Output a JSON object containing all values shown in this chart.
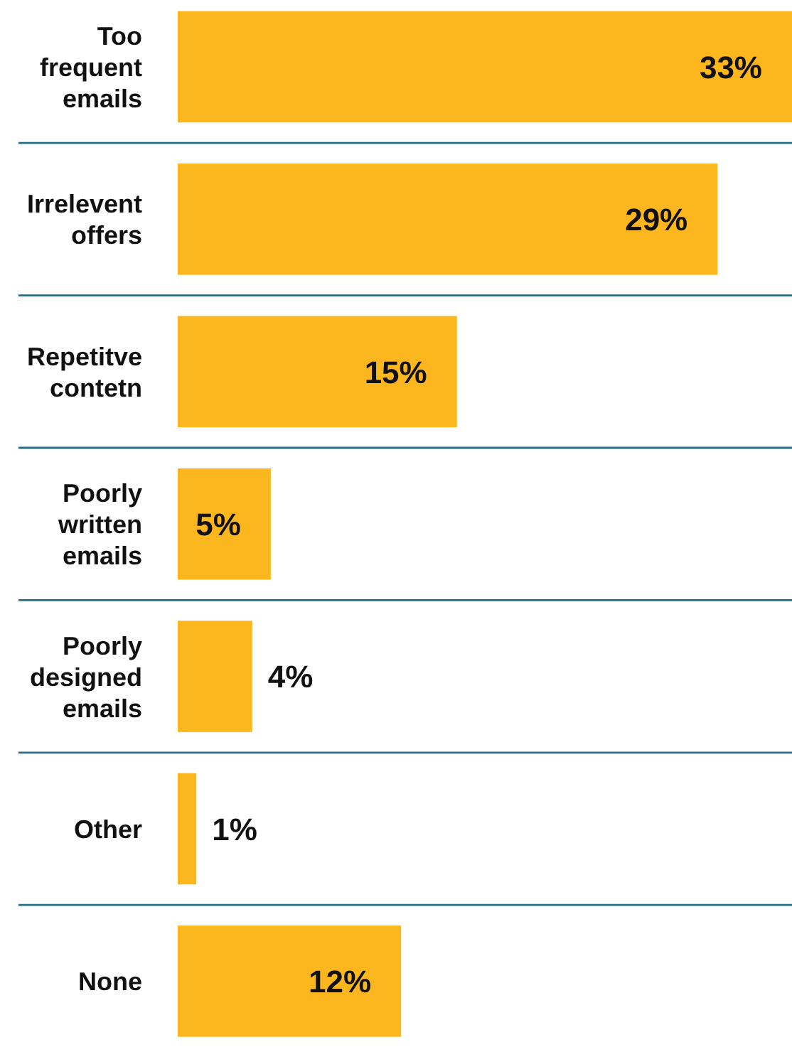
{
  "chart_data": {
    "type": "bar",
    "orientation": "horizontal",
    "categories": [
      "Too frequent emails",
      "Irrelevent offers",
      "Repetitve contetn",
      "Poorly written emails",
      "Poorly designed emails",
      "Other",
      "None"
    ],
    "values": [
      33,
      29,
      15,
      5,
      4,
      1,
      12
    ],
    "value_labels": [
      "33%",
      "29%",
      "15%",
      "5%",
      "4%",
      "1%",
      "12%"
    ],
    "color": "#fdb71e",
    "grid": "y",
    "tick_labels": "y"
  }
}
